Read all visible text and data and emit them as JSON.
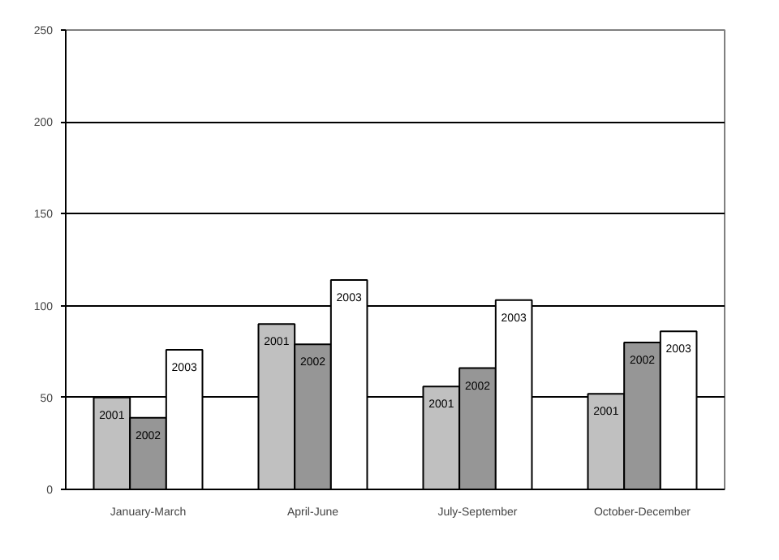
{
  "chart_data": {
    "type": "bar",
    "categories": [
      "January-March",
      "April-June",
      "July-September",
      "October-December"
    ],
    "series": [
      {
        "name": "2001",
        "color": "#c0c0c0",
        "values": [
          50,
          90,
          56,
          52
        ]
      },
      {
        "name": "2002",
        "color": "#969696",
        "values": [
          39,
          79,
          66,
          80
        ]
      },
      {
        "name": "2003",
        "color": "#ffffff",
        "values": [
          76,
          114,
          103,
          86
        ]
      }
    ],
    "ylim": [
      0,
      250
    ],
    "yticks": [
      0,
      50,
      100,
      150,
      200,
      250
    ],
    "grid": "y"
  }
}
